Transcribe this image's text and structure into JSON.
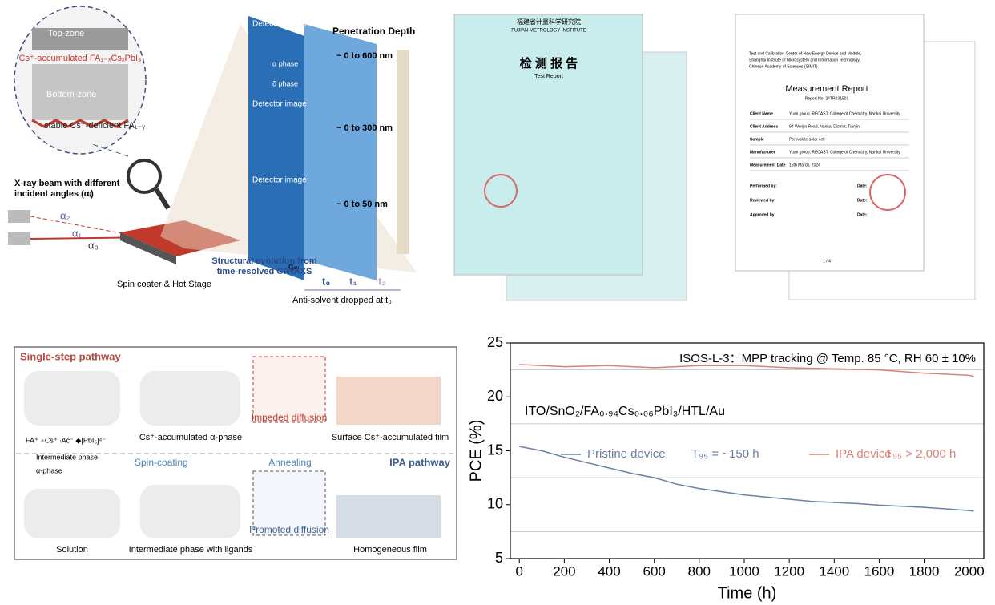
{
  "giwaxs": {
    "top_zone": "Top-zone",
    "top_label": "Cs⁺-accumulated FA₁₋ₓCsₓPbI₃",
    "bottom_zone": "Bottom-zone",
    "bottom_label": "stable Cs⁺-deficient FA₁₋ᵧ",
    "beam": [
      "X-ray beam with different",
      "incident angles (αᵢ)"
    ],
    "angles": [
      "α₂",
      "α₁",
      "α₀"
    ],
    "stage": "Spin coater & Hot Stage",
    "detector": "Detector image",
    "alpha_phase": "α phase",
    "delta_phase": "δ phase",
    "qxy": "qₓᵧ",
    "depth_title": "Penetration Depth",
    "depths": [
      "~ 0 to 600 nm",
      "~ 0 to 300 nm",
      "~ 0 to 50 nm"
    ],
    "evolution": [
      "Structural evolution from",
      "time-resolved GIWAXS"
    ],
    "times": [
      "t₀",
      "t₁",
      "t₂"
    ],
    "antisolvent": "Anti-solvent dropped at t₀"
  },
  "certificates": {
    "cn_institute": "福建省计量科学研究院",
    "en_institute": "FUJIAN METROLOGY INSTITUTE",
    "cn_title": "检 测 报 告",
    "cn_subtitle": "Test Report",
    "simit_header": [
      "Test and Calibration Center of New Energy Device and Module,",
      "Shanghai Institute of Microsystem and Information Technology,",
      "Chinese Academy of Sciences (SIMIT)"
    ],
    "title": "Measurement Report",
    "report_no": "Report No. 24TR031501",
    "fields": [
      [
        "Client Name",
        "Yuan group, RECAST, College of Chemistry, Nankai University"
      ],
      [
        "Client Address",
        "94 Wenjin Road, Nankai District, Tianjin"
      ],
      [
        "Sample",
        "Perovskite solar cell"
      ],
      [
        "Manufacturer",
        "Yuan group, RECAST, College of Chemistry, Nankai University"
      ],
      [
        "Measurement Date",
        "15th March, 2024"
      ]
    ],
    "signatures": [
      "Performed by:",
      "Reviewed by:",
      "Approved by:"
    ],
    "date_label": "Date:",
    "page": "1 / 4"
  },
  "pathway": {
    "single_step": "Single-step pathway",
    "ipa": "IPA pathway",
    "spin": "Spin-coating",
    "anneal": "Annealing",
    "impeded": "Impeded diffusion",
    "promoted": "Promoted diffusion",
    "top_captions": [
      "Cs⁺-accumulated α-phase",
      "Surface Cs⁺-accumulated film"
    ],
    "bottom_captions": [
      "Solution",
      "Intermediate phase with ligands",
      "Homogeneous film"
    ],
    "ions": "FA⁺ ∘Cs⁺ ∙Ac⁻ ◆[PbI₆]⁴⁻",
    "intermediate": "Intermediate phase",
    "alpha": "α-phase"
  },
  "chart_data": {
    "type": "line",
    "annotation": "ISOS-L-3：MPP tracking @ Temp. 85 °C, RH 60 ± 10%",
    "structure": "ITO/SnO₂/FA₀.₉₄Cs₀.₀₆PbI₃/HTL/Au",
    "x_label": "Time (h)",
    "y_label": "PCE (%)",
    "xlim": [
      -40,
      2065
    ],
    "ylim": [
      5,
      25
    ],
    "xticks": [
      0,
      200,
      400,
      600,
      800,
      1000,
      1200,
      1400,
      1600,
      1800,
      2000
    ],
    "yticks": [
      5,
      10,
      15,
      20,
      25
    ],
    "minor_grid": [
      7.5,
      12.5,
      17.5,
      22.5
    ],
    "series": [
      {
        "name": "Pristine device",
        "note": "T₉₅ = ~150 h",
        "color": "#6a7fa3",
        "x": [
          0,
          100,
          200,
          300,
          400,
          500,
          600,
          700,
          800,
          900,
          1000,
          1100,
          1200,
          1300,
          1400,
          1500,
          1600,
          1700,
          1800,
          1900,
          2000,
          2020
        ],
        "values": [
          15.4,
          15.0,
          14.4,
          13.9,
          13.4,
          12.9,
          12.5,
          11.9,
          11.5,
          11.2,
          10.9,
          10.7,
          10.5,
          10.3,
          10.2,
          10.1,
          9.95,
          9.85,
          9.75,
          9.6,
          9.45,
          9.4
        ]
      },
      {
        "name": "IPA device",
        "note": "T₉₅ > 2,000 h",
        "color": "#d9827a",
        "x": [
          0,
          200,
          400,
          600,
          800,
          1000,
          1200,
          1400,
          1600,
          1800,
          2000,
          2020
        ],
        "values": [
          23.0,
          22.8,
          22.9,
          22.7,
          22.9,
          22.9,
          22.7,
          22.6,
          22.5,
          22.2,
          22.0,
          21.9
        ]
      }
    ]
  }
}
